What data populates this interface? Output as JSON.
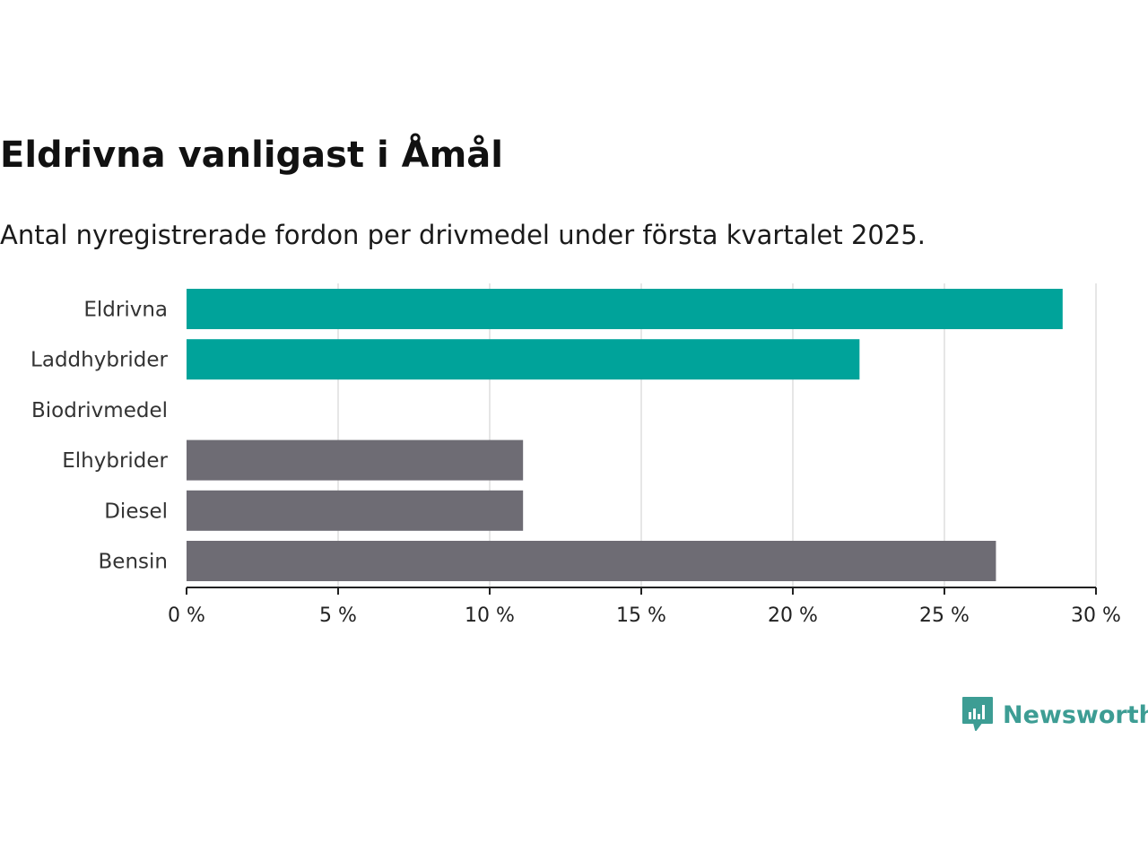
{
  "header": {
    "title": "Eldrivna vanligast i Åmål",
    "subtitle": "Antal nyregistrerade fordon per drivmedel under första kvartalet 2025."
  },
  "brand": {
    "name": "Newsworthy",
    "logo_icon": "newsworthy-logo-icon",
    "color": "#3d9d94"
  },
  "chart_data": {
    "type": "bar",
    "orientation": "horizontal",
    "categories": [
      "Eldrivna",
      "Laddhybrider",
      "Biodrivmedel",
      "Elhybrider",
      "Diesel",
      "Bensin"
    ],
    "values": [
      28.9,
      22.2,
      0,
      11.1,
      11.1,
      26.7
    ],
    "colors": [
      "#00a39a",
      "#00a39a",
      "#00a39a",
      "#6e6c74",
      "#6e6c74",
      "#6e6c74"
    ],
    "xlim": [
      0,
      30
    ],
    "x_ticks": [
      0,
      5,
      10,
      15,
      20,
      25,
      30
    ],
    "x_tick_labels": [
      "0 %",
      "5 %",
      "10 %",
      "15 %",
      "20 %",
      "25 %",
      "30 %"
    ],
    "grid": true,
    "unit": "%"
  }
}
